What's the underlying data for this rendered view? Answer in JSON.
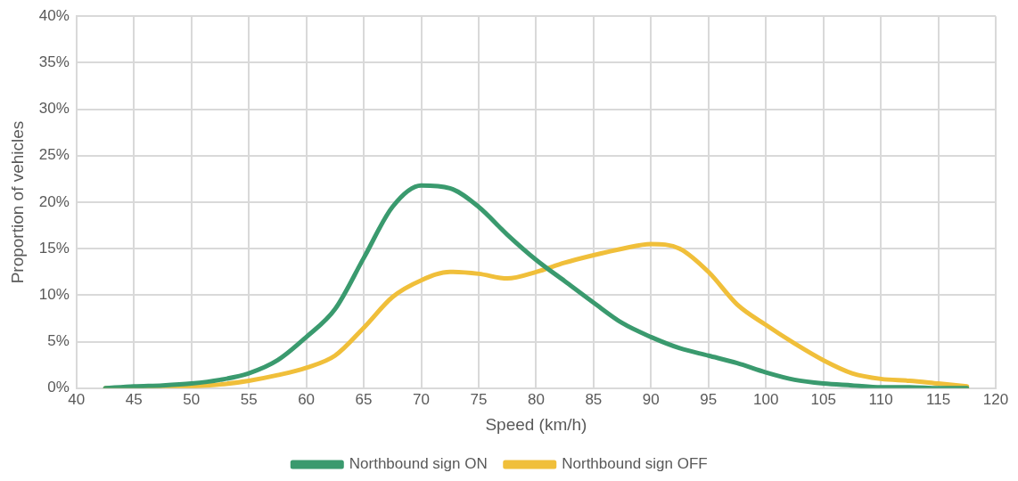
{
  "chart_data": {
    "type": "line",
    "xlabel": "Speed (km/h)",
    "ylabel": "Proportion of vehicles",
    "x": [
      42.5,
      45,
      47.5,
      50,
      52.5,
      55,
      57.5,
      60,
      62.5,
      65,
      67.5,
      70,
      72.5,
      75,
      77.5,
      80,
      82.5,
      85,
      87.5,
      90,
      92.5,
      95,
      97.5,
      100,
      102.5,
      105,
      107.5,
      110,
      112.5,
      115,
      117.5
    ],
    "series": [
      {
        "name": "Northbound sign ON",
        "color": "#3a9a6e",
        "values": [
          0,
          0.2,
          0.3,
          0.5,
          0.9,
          1.6,
          3,
          5.5,
          8.5,
          14,
          19.5,
          21.8,
          21.5,
          19.5,
          16.5,
          13.8,
          11.5,
          9.2,
          7,
          5.5,
          4.3,
          3.5,
          2.7,
          1.7,
          0.9,
          0.5,
          0.3,
          0.1,
          0.1,
          0,
          0
        ]
      },
      {
        "name": "Northbound sign OFF",
        "color": "#f0bf3a",
        "values": [
          0,
          null,
          0.1,
          0.2,
          0.4,
          0.8,
          1.4,
          2.2,
          3.5,
          6.5,
          9.8,
          11.6,
          12.5,
          12.3,
          11.8,
          12.5,
          13.5,
          14.3,
          15,
          15.5,
          15,
          12.5,
          9,
          6.8,
          4.8,
          3,
          1.6,
          1,
          0.8,
          0.5,
          0.2
        ]
      }
    ],
    "xlim": [
      40,
      120
    ],
    "xticks": [
      40,
      45,
      50,
      55,
      60,
      65,
      70,
      75,
      80,
      85,
      90,
      95,
      100,
      105,
      110,
      115,
      120
    ],
    "ylim": [
      0,
      40
    ],
    "yticks": [
      {
        "value": 0,
        "label": "0%"
      },
      {
        "value": 5,
        "label": "5%"
      },
      {
        "value": 10,
        "label": "10%"
      },
      {
        "value": 15,
        "label": "15%"
      },
      {
        "value": 20,
        "label": "20%"
      },
      {
        "value": 25,
        "label": "25%"
      },
      {
        "value": 30,
        "label": "30%"
      },
      {
        "value": 35,
        "label": "35%"
      },
      {
        "value": 40,
        "label": "40%"
      }
    ],
    "grid": true,
    "legend": "bottom",
    "marker": "none",
    "line_style": "solid"
  }
}
